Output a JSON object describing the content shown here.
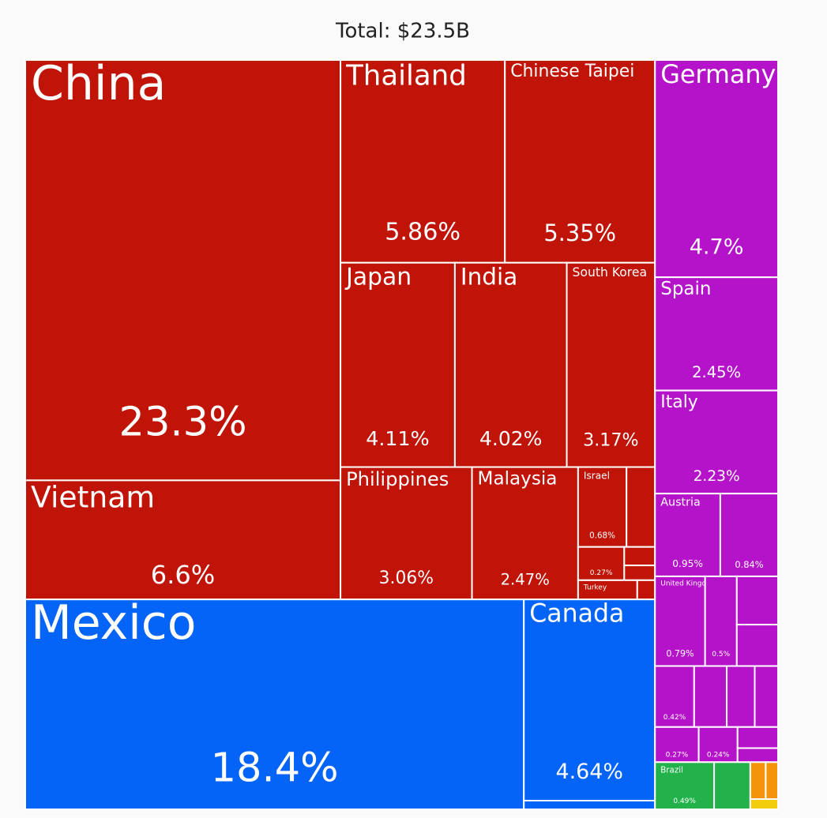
{
  "chart_data": {
    "type": "treemap",
    "title": "Total: $23.5B",
    "categories": [
      "China",
      "Vietnam",
      "Thailand",
      "Chinese Taipei",
      "Japan",
      "India",
      "South Korea",
      "Philippines",
      "Malaysia",
      "Israel",
      null,
      null,
      null,
      null,
      "Turkey",
      null,
      "Mexico",
      "Canada",
      null,
      "Germany",
      "Spain",
      "Italy",
      "Austria",
      null,
      "United Kingdom",
      null,
      null,
      null,
      null,
      null,
      null,
      null,
      null,
      null,
      null,
      null,
      "Brazil",
      null,
      null,
      null,
      null
    ],
    "values": [
      23.3,
      6.6,
      5.86,
      5.35,
      4.11,
      4.02,
      3.17,
      3.06,
      2.47,
      0.68,
      0.4,
      0.27,
      0.1,
      0.08,
      0.2,
      0.06,
      18.4,
      4.64,
      0.2,
      4.7,
      2.45,
      2.23,
      0.95,
      0.84,
      0.79,
      0.5,
      0.35,
      0.3,
      0.42,
      0.35,
      0.3,
      0.25,
      0.27,
      0.24,
      0.15,
      0.1,
      0.49,
      0.3,
      0.1,
      0.08,
      0.05
    ],
    "value_labels": [
      "23.3%",
      "6.6%",
      "5.86%",
      "5.35%",
      "4.11%",
      "4.02%",
      "3.17%",
      "3.06%",
      "2.47%",
      "0.68%",
      null,
      "0.27%",
      null,
      null,
      null,
      null,
      "18.4%",
      "4.64%",
      null,
      "4.7%",
      "2.45%",
      "2.23%",
      "0.95%",
      "0.84%",
      "0.79%",
      "0.5%",
      null,
      null,
      "0.42%",
      null,
      null,
      null,
      "0.27%",
      "0.24%",
      null,
      null,
      "0.49%",
      null,
      null,
      null,
      null
    ],
    "colors": [
      "#bf1407",
      "#bf1407",
      "#bf1407",
      "#bf1407",
      "#bf1407",
      "#bf1407",
      "#bf1407",
      "#bf1407",
      "#bf1407",
      "#bf1407",
      "#bf1407",
      "#bf1407",
      "#bf1407",
      "#bf1407",
      "#bf1407",
      "#bf1407",
      "#0464f8",
      "#0464f8",
      "#0464f8",
      "#b513c9",
      "#b513c9",
      "#b513c9",
      "#b513c9",
      "#b513c9",
      "#b513c9",
      "#b513c9",
      "#b513c9",
      "#b513c9",
      "#b513c9",
      "#b513c9",
      "#b513c9",
      "#b513c9",
      "#b513c9",
      "#b513c9",
      "#b513c9",
      "#b513c9",
      "#23b24a",
      "#23b24a",
      "#f5930a",
      "#f5930a",
      "#f2cd0d"
    ]
  }
}
